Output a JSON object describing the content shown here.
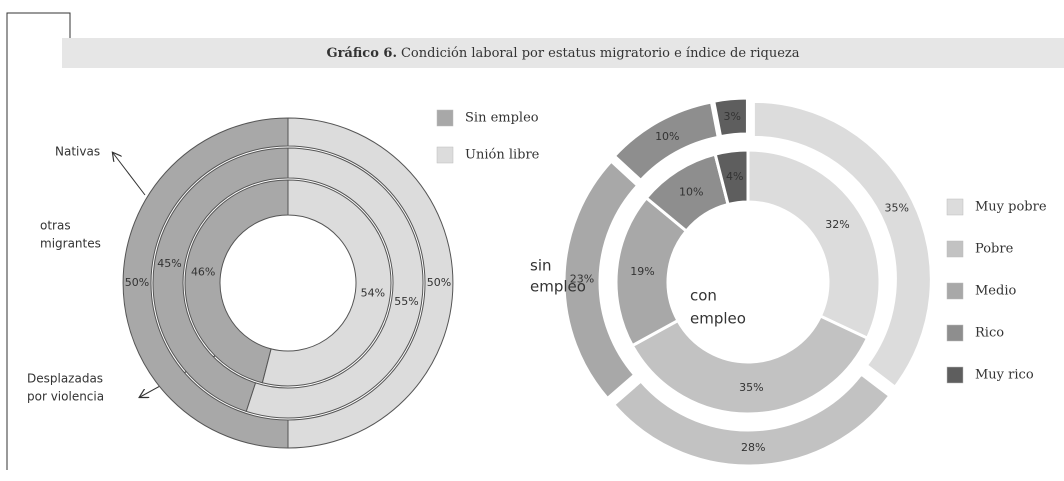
{
  "header": {
    "label": "Gráfico 6.",
    "title": "Condición laboral por estatus migratorio e índice de riqueza"
  },
  "chart_data": [
    {
      "type": "donut",
      "direction": "counterclockwise",
      "categories": [
        "Sin empleo",
        "Unión libre"
      ],
      "colors": [
        "#a8a8a8",
        "#dcdcdc"
      ],
      "rings": [
        {
          "name": [
            "Nativas"
          ],
          "values": [
            50,
            50
          ],
          "value_labels": [
            "50%",
            "50%"
          ]
        },
        {
          "name": [
            "otras",
            "migrantes"
          ],
          "values": [
            45,
            55
          ],
          "value_labels": [
            "45%",
            "55%"
          ]
        },
        {
          "name": [
            "Desplazadas",
            "por violencia"
          ],
          "values": [
            46,
            54
          ],
          "value_labels": [
            "46%",
            "54%"
          ]
        }
      ]
    },
    {
      "type": "donut",
      "direction": "clockwise",
      "categories": [
        "Muy pobre",
        "Pobre",
        "Medio",
        "Rico",
        "Muy rico"
      ],
      "colors": [
        "#dcdcdc",
        "#c2c2c2",
        "#a8a8a8",
        "#8e8e8e",
        "#5e5e5e"
      ],
      "rings": [
        {
          "name": [
            "con",
            "empleo"
          ],
          "values": [
            32,
            35,
            19,
            10,
            4
          ],
          "value_labels": [
            "32%",
            "35%",
            "19%",
            "10%",
            "4%"
          ]
        },
        {
          "name": [
            "sin",
            "empleo"
          ],
          "values": [
            35,
            28,
            23,
            10,
            3
          ],
          "value_labels": [
            "35%",
            "28%",
            "23%",
            "10%",
            "3%"
          ]
        }
      ]
    }
  ]
}
